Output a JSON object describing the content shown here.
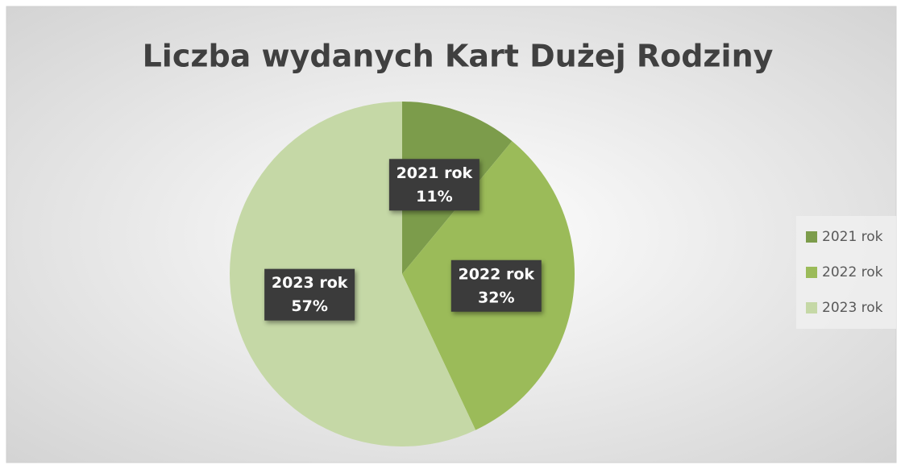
{
  "chart_data": {
    "type": "pie",
    "title": "Liczba wydanych Kart Dużej Rodziny",
    "categories": [
      "2021 rok",
      "2022 rok",
      "2023 rok"
    ],
    "values": [
      11,
      32,
      57
    ],
    "value_labels": [
      "11%",
      "32%",
      "57%"
    ],
    "colors": [
      "#7c9c4b",
      "#9bbb59",
      "#c5d8a6"
    ],
    "legend": "right"
  }
}
